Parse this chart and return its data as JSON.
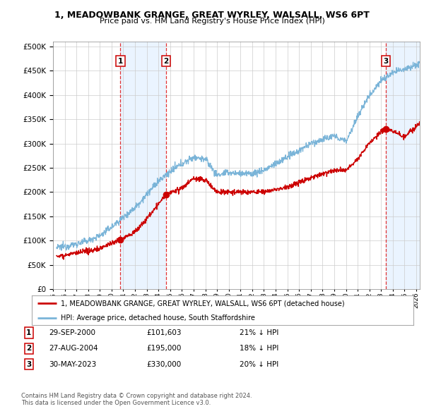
{
  "title_line1": "1, MEADOWBANK GRANGE, GREAT WYRLEY, WALSALL, WS6 6PT",
  "title_line2": "Price paid vs. HM Land Registry's House Price Index (HPI)",
  "ytick_values": [
    0,
    50000,
    100000,
    150000,
    200000,
    250000,
    300000,
    350000,
    400000,
    450000,
    500000
  ],
  "ylim": [
    0,
    510000
  ],
  "xlim_start": 1995.3,
  "xlim_end": 2026.3,
  "sale_dates": [
    2000.75,
    2004.65,
    2023.41
  ],
  "sale_prices": [
    101603,
    195000,
    330000
  ],
  "sale_labels": [
    "1",
    "2",
    "3"
  ],
  "legend_line1": "1, MEADOWBANK GRANGE, GREAT WYRLEY, WALSALL, WS6 6PT (detached house)",
  "legend_line2": "HPI: Average price, detached house, South Staffordshire",
  "table_rows": [
    [
      "1",
      "29-SEP-2000",
      "£101,603",
      "21% ↓ HPI"
    ],
    [
      "2",
      "27-AUG-2004",
      "£195,000",
      "18% ↓ HPI"
    ],
    [
      "3",
      "30-MAY-2023",
      "£330,000",
      "20% ↓ HPI"
    ]
  ],
  "footnote1": "Contains HM Land Registry data © Crown copyright and database right 2024.",
  "footnote2": "This data is licensed under the Open Government Licence v3.0.",
  "hpi_color": "#7ab4d8",
  "price_color": "#cc0000",
  "vline_color": "#dd0000",
  "bg_color": "#ffffff",
  "grid_color": "#cccccc",
  "shade_color": "#ddeeff"
}
